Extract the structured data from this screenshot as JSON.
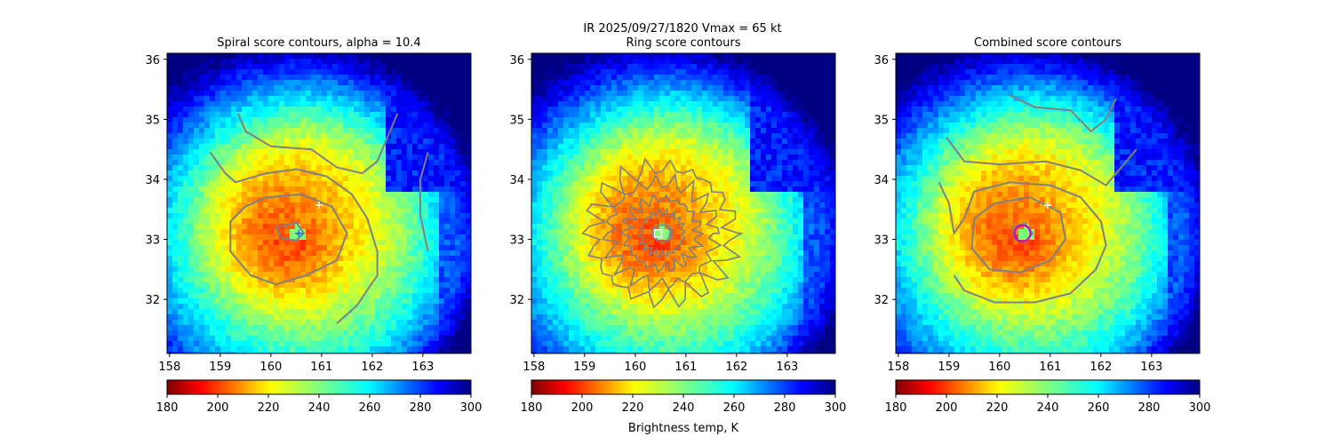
{
  "figure": {
    "suptitle_line": "IR  2025/09/27/1820    Vmax = 65 kt",
    "colorbar_label": "Brightness temp, K"
  },
  "chart_data": [
    {
      "type": "heatmap",
      "title": "Spiral score contours, alpha = 10.4",
      "xlim": [
        157.95,
        163.95
      ],
      "ylim": [
        31.1,
        36.1
      ],
      "xticks": [
        158,
        159,
        160,
        161,
        162,
        163
      ],
      "yticks": [
        32,
        33,
        34,
        35,
        36
      ],
      "grid": false,
      "storm_center": [
        160.53,
        33.1
      ],
      "markers": [
        {
          "symbol": "plus",
          "x": 160.95,
          "y": 33.57,
          "color": "#ffffff"
        },
        {
          "symbol": "plus",
          "x": 160.55,
          "y": 33.1,
          "color": "#1f4fff"
        }
      ],
      "contours": [
        {
          "level": "inner",
          "color": "#808080",
          "points": [
            [
              160.1,
              33.2
            ],
            [
              160.5,
              33.28
            ],
            [
              160.65,
              33.1
            ],
            [
              160.5,
              32.98
            ],
            [
              160.2,
              33.02
            ],
            [
              160.1,
              33.2
            ]
          ]
        },
        {
          "level": "mid",
          "color": "#808080",
          "points": [
            [
              159.9,
              33.7
            ],
            [
              160.6,
              33.75
            ],
            [
              161.2,
              33.55
            ],
            [
              161.5,
              33.1
            ],
            [
              161.3,
              32.65
            ],
            [
              160.7,
              32.4
            ],
            [
              160.1,
              32.25
            ],
            [
              159.6,
              32.4
            ],
            [
              159.2,
              32.8
            ],
            [
              159.2,
              33.3
            ],
            [
              159.5,
              33.55
            ],
            [
              159.9,
              33.7
            ]
          ]
        },
        {
          "level": "outer",
          "color": "#808080",
          "points": [
            [
              158.8,
              34.45
            ],
            [
              159.1,
              34.1
            ],
            [
              159.3,
              33.95
            ],
            [
              159.9,
              34.1
            ],
            [
              160.5,
              34.17
            ],
            [
              161.1,
              34.05
            ],
            [
              161.6,
              33.75
            ],
            [
              161.9,
              33.35
            ],
            [
              162.1,
              32.8
            ],
            [
              162.1,
              32.4
            ],
            [
              161.7,
              31.9
            ],
            [
              161.3,
              31.6
            ]
          ]
        },
        {
          "level": "outermost",
          "color": "#808080",
          "points": [
            [
              159.35,
              35.1
            ],
            [
              159.5,
              34.8
            ],
            [
              160,
              34.55
            ],
            [
              160.8,
              34.5
            ],
            [
              161.3,
              34.2
            ],
            [
              161.8,
              34.1
            ],
            [
              162.1,
              34.3
            ],
            [
              162.3,
              34.7
            ],
            [
              162.5,
              35.1
            ]
          ]
        },
        {
          "level": "east",
          "color": "#808080",
          "points": [
            [
              163.1,
              34.45
            ],
            [
              162.95,
              34.0
            ],
            [
              162.95,
              33.4
            ],
            [
              163.1,
              32.8
            ]
          ]
        }
      ]
    },
    {
      "type": "heatmap",
      "title": "Ring score contours",
      "xlim": [
        157.95,
        163.95
      ],
      "ylim": [
        31.1,
        36.1
      ],
      "xticks": [
        158,
        159,
        160,
        161,
        162,
        163
      ],
      "yticks": [
        32,
        33,
        34,
        35,
        36
      ],
      "grid": false,
      "storm_center": [
        160.53,
        33.1
      ],
      "markers": [
        {
          "symbol": "square",
          "x": 160.45,
          "y": 33.1,
          "color": "#ffffff"
        }
      ],
      "contours": [
        {
          "level": "ring-1",
          "color": "#808080",
          "radius": [
            0.18,
            0.14
          ]
        },
        {
          "level": "ring-2",
          "color": "#808080",
          "radius": [
            0.42,
            0.35
          ]
        },
        {
          "level": "ring-3",
          "color": "#808080",
          "radius": [
            0.72,
            0.58
          ]
        },
        {
          "level": "ring-4",
          "color": "#808080",
          "radius": [
            1.05,
            0.85
          ]
        },
        {
          "level": "ring-5",
          "color": "#808080",
          "radius": [
            1.4,
            1.1
          ]
        }
      ]
    },
    {
      "type": "heatmap",
      "title": "Combined score contours",
      "xlim": [
        157.95,
        163.95
      ],
      "ylim": [
        31.1,
        36.1
      ],
      "xticks": [
        158,
        159,
        160,
        161,
        162,
        163
      ],
      "yticks": [
        32,
        33,
        34,
        35,
        36
      ],
      "grid": false,
      "storm_center": [
        160.53,
        33.1
      ],
      "markers": [
        {
          "symbol": "plus",
          "x": 160.95,
          "y": 33.57,
          "color": "#ffffff"
        },
        {
          "symbol": "square",
          "x": 160.45,
          "y": 33.1,
          "color": "#66ff66"
        },
        {
          "symbol": "circle",
          "x": 160.45,
          "y": 33.1,
          "color": "#cc00cc"
        }
      ],
      "contours": [
        {
          "level": "inner",
          "color": "#808080",
          "points": [
            [
              160.25,
              33.2
            ],
            [
              160.5,
              33.27
            ],
            [
              160.65,
              33.1
            ],
            [
              160.5,
              32.95
            ],
            [
              160.3,
              33.0
            ],
            [
              160.25,
              33.2
            ]
          ]
        },
        {
          "level": "mid",
          "color": "#808080",
          "points": [
            [
              159.9,
              33.6
            ],
            [
              160.6,
              33.7
            ],
            [
              161.2,
              33.45
            ],
            [
              161.3,
              33.0
            ],
            [
              161.0,
              32.65
            ],
            [
              160.4,
              32.45
            ],
            [
              159.8,
              32.5
            ],
            [
              159.45,
              32.85
            ],
            [
              159.5,
              33.35
            ],
            [
              159.9,
              33.6
            ]
          ]
        },
        {
          "level": "outer",
          "color": "#808080",
          "points": [
            [
              158.8,
              33.95
            ],
            [
              159.0,
              33.6
            ],
            [
              159.1,
              33.1
            ],
            [
              159.3,
              33.35
            ],
            [
              159.5,
              33.8
            ],
            [
              160.2,
              33.95
            ],
            [
              161.0,
              33.9
            ],
            [
              161.6,
              33.7
            ],
            [
              162.0,
              33.3
            ],
            [
              162.1,
              32.9
            ],
            [
              161.9,
              32.5
            ],
            [
              161.4,
              32.1
            ],
            [
              160.7,
              31.95
            ],
            [
              159.9,
              31.95
            ],
            [
              159.3,
              32.15
            ],
            [
              159.1,
              32.4
            ]
          ]
        },
        {
          "level": "outermost",
          "color": "#808080",
          "points": [
            [
              158.95,
              34.7
            ],
            [
              159.3,
              34.3
            ],
            [
              160.0,
              34.25
            ],
            [
              160.9,
              34.3
            ],
            [
              161.6,
              34.15
            ],
            [
              162.1,
              33.9
            ],
            [
              162.4,
              34.2
            ],
            [
              162.7,
              34.5
            ]
          ]
        },
        {
          "level": "north",
          "color": "#808080",
          "points": [
            [
              160.2,
              35.4
            ],
            [
              160.7,
              35.2
            ],
            [
              161.4,
              35.15
            ],
            [
              161.8,
              34.8
            ],
            [
              162.1,
              35.0
            ],
            [
              162.3,
              35.35
            ]
          ]
        }
      ]
    }
  ],
  "colorbar": {
    "min": 180,
    "max": 300,
    "ticks": [
      180,
      200,
      220,
      240,
      260,
      280,
      300
    ],
    "colormap": "jet_r"
  }
}
